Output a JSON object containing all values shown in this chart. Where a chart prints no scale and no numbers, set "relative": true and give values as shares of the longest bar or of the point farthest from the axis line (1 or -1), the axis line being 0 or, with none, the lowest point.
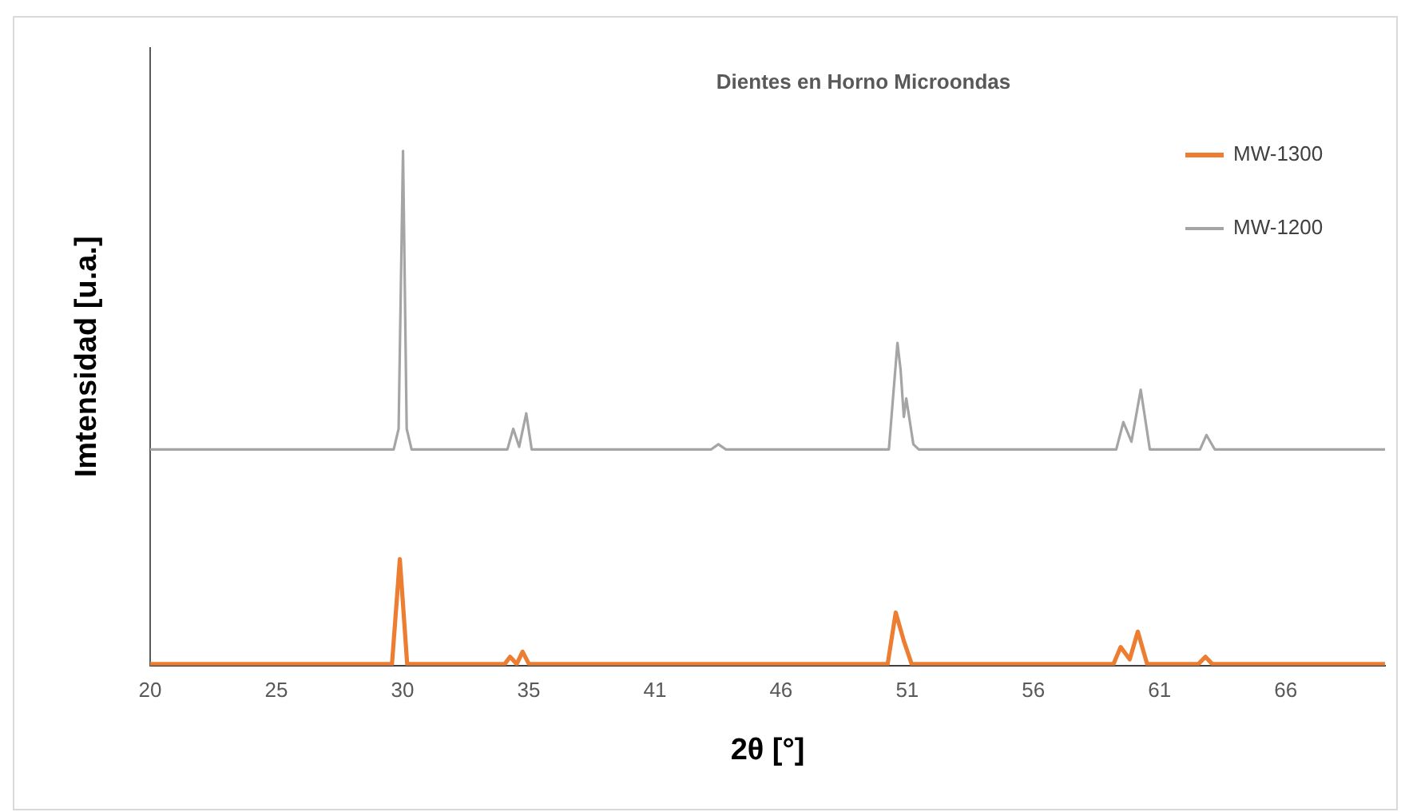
{
  "chart_data": {
    "type": "line",
    "title": "Dientes en Horno Microondas",
    "xlabel": "2θ [°]",
    "ylabel": "Imtensidad [u.a.]",
    "relative": true,
    "legend": "top right",
    "grid": false,
    "marker": "none",
    "line_style": "solid",
    "tick_labels": "x",
    "xlim": [
      20,
      70.4
    ],
    "xticks": [
      20,
      {
        "value": 25.15,
        "label": "25"
      },
      {
        "value": 30.3,
        "label": "30"
      },
      {
        "value": 35.45,
        "label": "35"
      },
      {
        "value": 40.6,
        "label": "41"
      },
      {
        "value": 45.75,
        "label": "46"
      },
      {
        "value": 50.9,
        "label": "51"
      },
      {
        "value": 56.05,
        "label": "56"
      },
      {
        "value": 61.2,
        "label": "61"
      },
      {
        "value": 66.35,
        "label": "66"
      }
    ],
    "series": [
      {
        "name": "MW-1300",
        "color": "#ed7d31",
        "x": [
          20,
          29.87,
          30.19,
          30.49,
          34.47,
          34.69,
          34.96,
          35.2,
          35.46,
          50.1,
          50.43,
          50.76,
          51.08,
          59.32,
          59.61,
          59.98,
          60.31,
          60.69,
          62.78,
          63.07,
          63.35,
          70.4
        ],
        "values": [
          0.003,
          0.003,
          0.207,
          0.003,
          0.003,
          0.017,
          0.003,
          0.027,
          0.003,
          0.003,
          0.103,
          0.048,
          0.003,
          0.003,
          0.036,
          0.012,
          0.066,
          0.003,
          0.003,
          0.017,
          0.003,
          0.003
        ]
      },
      {
        "name": "MW-1200",
        "color": "#a5a5a5",
        "x": [
          20,
          29.94,
          30.14,
          30.32,
          30.47,
          30.67,
          34.58,
          34.82,
          35.06,
          35.35,
          35.57,
          42.9,
          43.19,
          43.5,
          50.15,
          50.5,
          50.63,
          50.76,
          50.86,
          51.15,
          51.37,
          59.43,
          59.72,
          60.05,
          60.43,
          60.8,
          62.85,
          63.11,
          63.45,
          70.4
        ],
        "values": [
          0.42,
          0.42,
          0.46,
          1,
          0.46,
          0.42,
          0.42,
          0.46,
          0.425,
          0.49,
          0.42,
          0.42,
          0.43,
          0.42,
          0.42,
          0.627,
          0.574,
          0.483,
          0.519,
          0.43,
          0.42,
          0.42,
          0.473,
          0.435,
          0.536,
          0.42,
          0.42,
          0.448,
          0.42,
          0.42
        ]
      }
    ]
  }
}
